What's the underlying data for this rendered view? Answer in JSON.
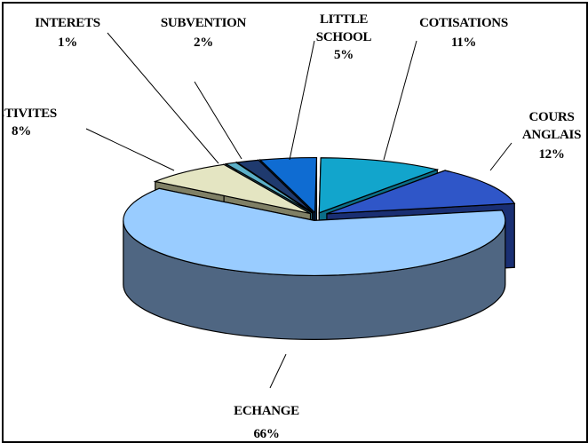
{
  "chart_data": {
    "type": "pie",
    "style": "3d-exploded",
    "title": "",
    "slices": [
      {
        "label": "COTISATIONS",
        "percent_label": "11%",
        "value": 11,
        "color": "#12A5CC",
        "side_color": "#0B6E88"
      },
      {
        "label": "COURS ANGLAIS",
        "percent_label": "12%",
        "value": 12,
        "color": "#2F56C8",
        "side_color": "#1A2F73"
      },
      {
        "label": "ECHANGE",
        "percent_label": "66%",
        "value": 66,
        "color": "#99CCFF",
        "side_color": "#4F6682"
      },
      {
        "label": "ACTIVITES",
        "percent_label": "8%",
        "value": 8,
        "color": "#E4E5C2",
        "side_color": "#808066"
      },
      {
        "label": "INTERETS",
        "percent_label": "1%",
        "value": 1,
        "color": "#5CB0C8",
        "side_color": "#2F6E80"
      },
      {
        "label": "SUBVENTION",
        "percent_label": "2%",
        "value": 2,
        "color": "#1F3A6E",
        "side_color": "#0F2040"
      },
      {
        "label": "LITTLE SCHOOL",
        "percent_label": "5%",
        "value": 5,
        "color": "#0F6CD2",
        "side_color": "#083C78"
      }
    ],
    "legend": "none"
  }
}
